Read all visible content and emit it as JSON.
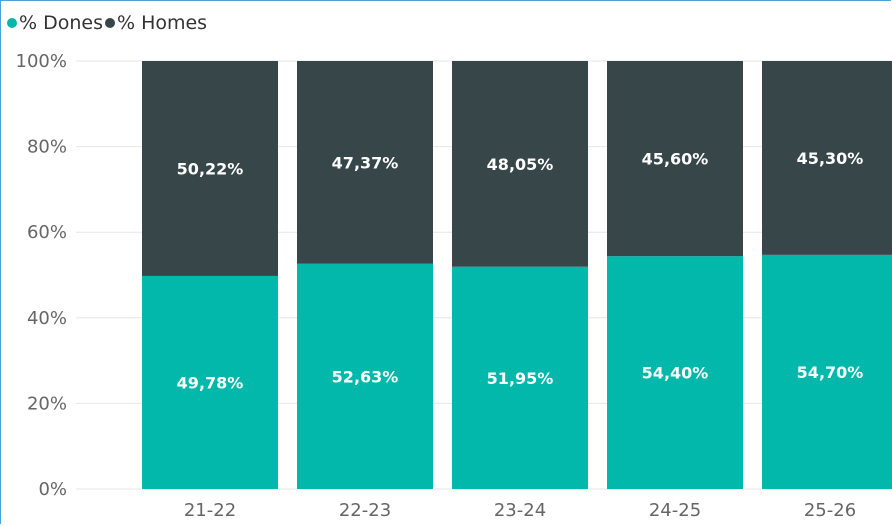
{
  "legend": [
    {
      "label": "% Dones",
      "color": "#01b8aa"
    },
    {
      "label": "% Homes",
      "color": "#374649"
    }
  ],
  "chart_data": {
    "type": "bar",
    "stacked": true,
    "categories": [
      "21-22",
      "22-23",
      "23-24",
      "24-25",
      "25-26"
    ],
    "series": [
      {
        "name": "% Dones",
        "color": "#01b8aa",
        "values": [
          49.78,
          52.63,
          51.95,
          54.4,
          54.7
        ],
        "labels": [
          "49,78%",
          "52,63%",
          "51,95%",
          "54,40%",
          "54,70%"
        ]
      },
      {
        "name": "% Homes",
        "color": "#374649",
        "values": [
          50.22,
          47.37,
          48.05,
          45.6,
          45.3
        ],
        "labels": [
          "50,22%",
          "47,37%",
          "48,05%",
          "45,60%",
          "45,30%"
        ]
      }
    ],
    "ylim": [
      0,
      100
    ],
    "yticks": [
      "0%",
      "20%",
      "40%",
      "60%",
      "80%",
      "100%"
    ],
    "grid": true,
    "legend_position": "top-left"
  }
}
